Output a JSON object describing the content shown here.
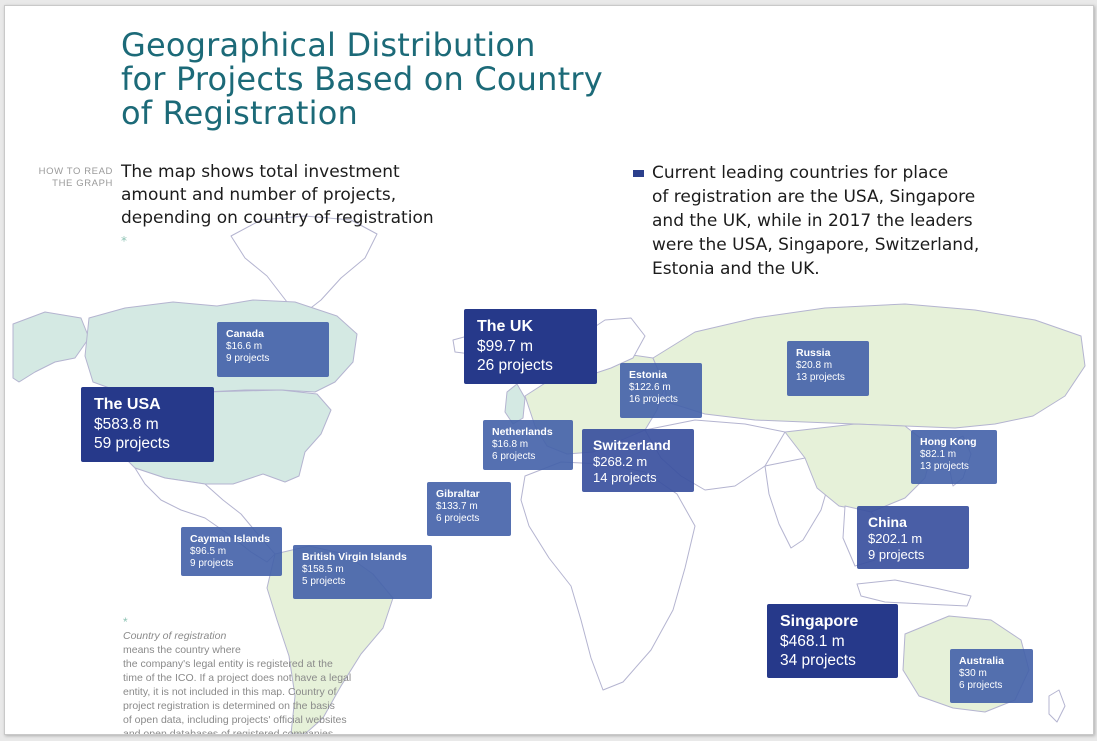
{
  "title": {
    "lines": [
      "Geographical Distribution",
      "for Projects Based on Country",
      "of Registration"
    ]
  },
  "how_to_read": {
    "lines": [
      "HOW TO READ",
      "THE GRAPH"
    ]
  },
  "intro": {
    "lines": [
      "The map shows total investment",
      "amount and number of projects,",
      "depending on country of registration"
    ],
    "asterisk": "*"
  },
  "leading_note": {
    "lines": [
      "Current leading countries for place",
      "of registration are the USA, Singapore",
      "and the UK, while in 2017 the leaders",
      "were the USA, Singapore, Switzerland,",
      "Estonia and the UK."
    ],
    "bullet_color": "#2b3f8c"
  },
  "countries": [
    {
      "name": "The USA",
      "amount": "$583.8 m",
      "projects": "59 projects",
      "amount_musd": 583.8,
      "project_count": 59
    },
    {
      "name": "Canada",
      "amount": "$16.6 m",
      "projects": "9 projects",
      "amount_musd": 16.6,
      "project_count": 9
    },
    {
      "name": "The UK",
      "amount": "$99.7 m",
      "projects": "26 projects",
      "amount_musd": 99.7,
      "project_count": 26
    },
    {
      "name": "Estonia",
      "amount": "$122.6 m",
      "projects": "16 projects",
      "amount_musd": 122.6,
      "project_count": 16
    },
    {
      "name": "Russia",
      "amount": "$20.8 m",
      "projects": "13 projects",
      "amount_musd": 20.8,
      "project_count": 13
    },
    {
      "name": "Netherlands",
      "amount": "$16.8 m",
      "projects": "6 projects",
      "amount_musd": 16.8,
      "project_count": 6
    },
    {
      "name": "Switzerland",
      "amount": "$268.2 m",
      "projects": "14 projects",
      "amount_musd": 268.2,
      "project_count": 14
    },
    {
      "name": "Hong Kong",
      "amount": "$82.1 m",
      "projects": "13 projects",
      "amount_musd": 82.1,
      "project_count": 13
    },
    {
      "name": "Gibraltar",
      "amount": "$133.7 m",
      "projects": "6 projects",
      "amount_musd": 133.7,
      "project_count": 6
    },
    {
      "name": "China",
      "amount": "$202.1 m",
      "projects": "9 projects",
      "amount_musd": 202.1,
      "project_count": 9
    },
    {
      "name": "Cayman Islands",
      "amount": "$96.5 m",
      "projects": "9 projects",
      "amount_musd": 96.5,
      "project_count": 9
    },
    {
      "name": "British Virgin Islands",
      "amount": "$158.5 m",
      "projects": "5 projects",
      "amount_musd": 158.5,
      "project_count": 5
    },
    {
      "name": "Singapore",
      "amount": "$468.1 m",
      "projects": "34 projects",
      "amount_musd": 468.1,
      "project_count": 34
    },
    {
      "name": "Australia",
      "amount": "$30 m",
      "projects": "6 projects",
      "amount_musd": 30,
      "project_count": 6
    }
  ],
  "footnote": {
    "asterisk": "*",
    "term": "Country of registration",
    "lines": [
      "means the country where",
      "the company's legal entity is registered at the",
      "time of the ICO. If a project does not have a legal",
      "entity, it is not included in this map. Country of",
      "project registration is determined on the basis",
      "of open data, including projects' official websites",
      "and open databases of registered companies."
    ]
  },
  "colors": {
    "title": "#1c6a78",
    "box_large": "#26398a",
    "box_medium": "#3a509e",
    "box_small": "#4360a8",
    "land_highlight_green": "#e6f1d9",
    "land_highlight_teal": "#d4e9e3",
    "land_default": "#ffffff",
    "borders": "#b4b4d0"
  }
}
